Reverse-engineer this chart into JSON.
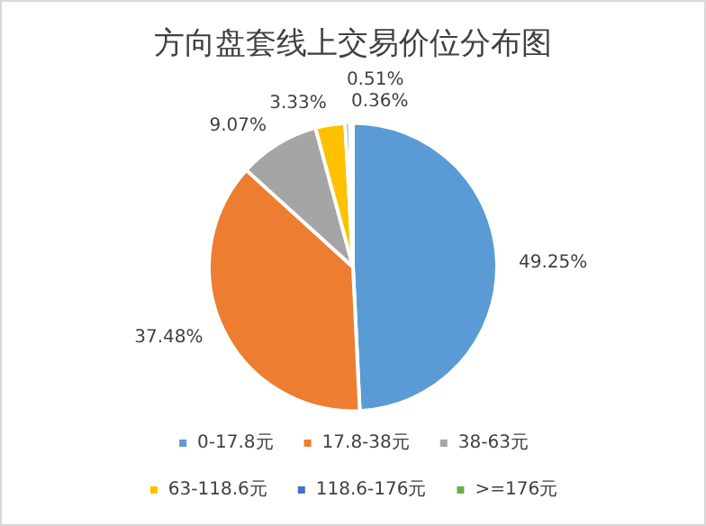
{
  "chart_data": {
    "type": "pie",
    "title": "方向盘套线上交易价位分布图",
    "categories": [
      "0-17.8元",
      "17.8-38元",
      "38-63元",
      "63-118.6元",
      "118.6-176元",
      ">=176元"
    ],
    "values": [
      49.25,
      37.48,
      9.07,
      3.33,
      0.51,
      0.36
    ],
    "value_labels": [
      "49.25%",
      "37.48%",
      "9.07%",
      "3.33%",
      "0.51%",
      "0.36%"
    ],
    "colors": [
      "#5b9bd5",
      "#ed7d31",
      "#a5a5a5",
      "#ffc000",
      "#4472c4",
      "#70ad47"
    ],
    "legend": "bottom"
  }
}
